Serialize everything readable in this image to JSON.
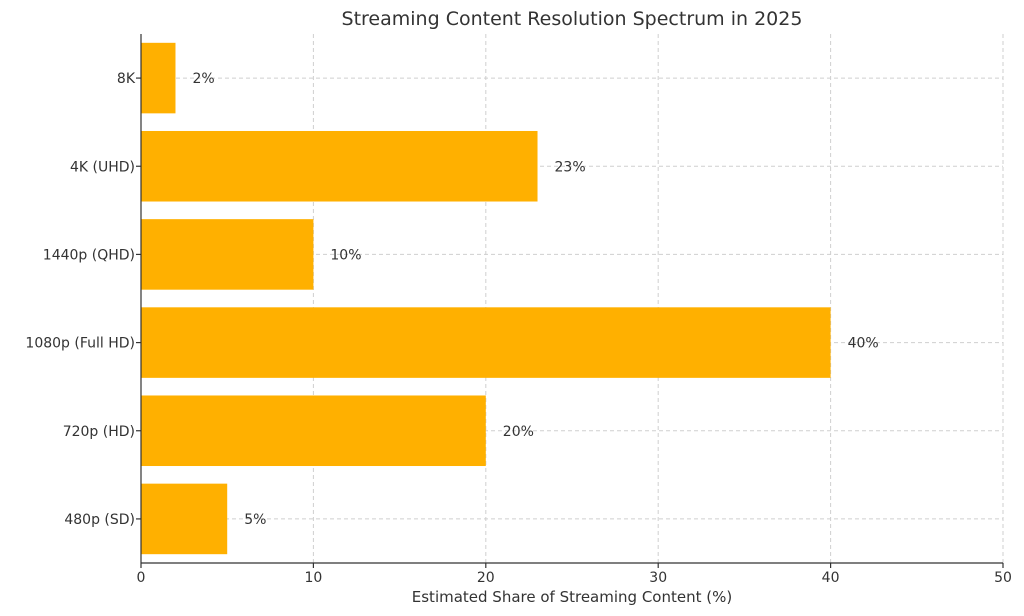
{
  "chart_data": {
    "type": "bar",
    "orientation": "horizontal",
    "title": "Streaming Content Resolution Spectrum in 2025",
    "xlabel": "Estimated Share of Streaming Content (%)",
    "ylabel": "",
    "categories": [
      "8K",
      "4K (UHD)",
      "1440p (QHD)",
      "1080p (Full HD)",
      "720p (HD)",
      "480p (SD)"
    ],
    "values": [
      2,
      23,
      10,
      40,
      20,
      5
    ],
    "data_labels": [
      "2%",
      "23%",
      "10%",
      "40%",
      "20%",
      "5%"
    ],
    "xlim": [
      0,
      50
    ],
    "xticks": [
      0,
      10,
      20,
      30,
      40,
      50
    ],
    "grid": true,
    "bar_color": "#FFB000"
  }
}
